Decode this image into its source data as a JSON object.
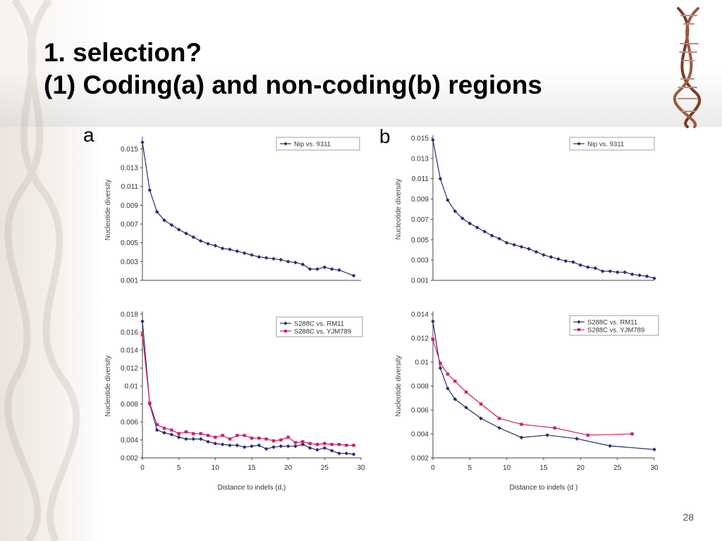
{
  "slide": {
    "title_line1": "1. selection?",
    "title_line2": "(1) Coding(a) and non-coding(b) regions",
    "panel_a": "a",
    "panel_b": "b",
    "page_number": "28"
  },
  "colors": {
    "navy": "#2b2a6e",
    "magenta": "#c8246e"
  },
  "chart_data": [
    {
      "id": "a-top",
      "type": "line",
      "ylabel": "Nucleotide diversity",
      "xlabel": "",
      "ylim": [
        0.001,
        0.016
      ],
      "xlim": [
        0,
        30
      ],
      "yticks": [
        0.001,
        0.003,
        0.005,
        0.007,
        0.009,
        0.011,
        0.013,
        0.015
      ],
      "ytick_labels": [
        "0.001",
        "0.003",
        "0.005",
        "0.007",
        "0.009",
        "0.011",
        "0.013",
        "0.015"
      ],
      "xticks": [],
      "xtick_labels": [],
      "grid": false,
      "legend": "top-right",
      "series": [
        {
          "name": "Nip vs. 9311",
          "color": "#2b2a6e",
          "marker": "diamond",
          "x": [
            0,
            1,
            2,
            3,
            4,
            5,
            6,
            7,
            8,
            9,
            10,
            11,
            12,
            13,
            14,
            15,
            16,
            17,
            18,
            19,
            20,
            21,
            22,
            23,
            24,
            25,
            26,
            27,
            29
          ],
          "y": [
            0.0157,
            0.0106,
            0.0083,
            0.0074,
            0.0069,
            0.0064,
            0.006,
            0.0056,
            0.0052,
            0.0049,
            0.0047,
            0.0044,
            0.0043,
            0.0041,
            0.0039,
            0.0037,
            0.0035,
            0.0034,
            0.0033,
            0.0032,
            0.003,
            0.0029,
            0.0027,
            0.0022,
            0.0022,
            0.0024,
            0.0022,
            0.0021,
            0.0015
          ]
        }
      ]
    },
    {
      "id": "a-bottom",
      "type": "line",
      "ylabel": "Nucleotide diversity",
      "xlabel": "Distance to indels (d,)",
      "ylim": [
        0.002,
        0.018
      ],
      "xlim": [
        0,
        30
      ],
      "yticks": [
        0.002,
        0.004,
        0.006,
        0.008,
        0.01,
        0.012,
        0.014,
        0.016,
        0.018
      ],
      "ytick_labels": [
        "0.002",
        "0.004",
        "0.006",
        "0.008",
        "0.01",
        "0.012",
        "0.014",
        "0.016",
        "0.018"
      ],
      "xticks": [
        0,
        5,
        10,
        15,
        20,
        25,
        30
      ],
      "xtick_labels": [
        "0",
        "5",
        "10",
        "15",
        "20",
        "25",
        "30"
      ],
      "grid": false,
      "legend": "top-right",
      "series": [
        {
          "name": "S288C vs. RM11",
          "color": "#2b2a6e",
          "marker": "diamond",
          "x": [
            0,
            1,
            2,
            3,
            4,
            5,
            6,
            7,
            8,
            9,
            10,
            11,
            12,
            13,
            14,
            15,
            16,
            17,
            18,
            19,
            20,
            21,
            22,
            23,
            24,
            25,
            26,
            27,
            28,
            29
          ],
          "y": [
            0.0172,
            0.008,
            0.0051,
            0.0048,
            0.0046,
            0.0043,
            0.0041,
            0.0041,
            0.0041,
            0.0038,
            0.0036,
            0.0035,
            0.0034,
            0.0034,
            0.0032,
            0.0033,
            0.0034,
            0.003,
            0.0032,
            0.0033,
            0.0033,
            0.0033,
            0.0035,
            0.0031,
            0.0029,
            0.0031,
            0.0028,
            0.0025,
            0.0025,
            0.0024
          ]
        },
        {
          "name": "S288C vs. YJM789",
          "color": "#c8246e",
          "marker": "square",
          "x": [
            0,
            1,
            2,
            3,
            4,
            5,
            6,
            7,
            8,
            9,
            10,
            11,
            12,
            13,
            14,
            15,
            16,
            17,
            18,
            19,
            20,
            21,
            22,
            23,
            24,
            25,
            26,
            27,
            28,
            29
          ],
          "y": [
            0.0157,
            0.0081,
            0.0057,
            0.0053,
            0.0051,
            0.0047,
            0.0049,
            0.0047,
            0.0047,
            0.0045,
            0.0043,
            0.0045,
            0.0041,
            0.0045,
            0.0045,
            0.0042,
            0.0042,
            0.0041,
            0.0039,
            0.004,
            0.0043,
            0.0037,
            0.0038,
            0.0036,
            0.0035,
            0.0036,
            0.0035,
            0.0035,
            0.0034,
            0.0034
          ]
        }
      ]
    },
    {
      "id": "b-top",
      "type": "line",
      "ylabel": "Nucleotide diversity",
      "xlabel": "",
      "ylim": [
        0.001,
        0.015
      ],
      "xlim": [
        0,
        30
      ],
      "yticks": [
        0.001,
        0.003,
        0.005,
        0.007,
        0.009,
        0.011,
        0.013,
        0.015
      ],
      "ytick_labels": [
        "0.001",
        "0.003",
        "0.005",
        "0.007",
        "0.009",
        "0.011",
        "0.013",
        "0.015"
      ],
      "xticks": [],
      "xtick_labels": [],
      "grid": false,
      "legend": "top-right",
      "series": [
        {
          "name": "Nip vs. 9311",
          "color": "#2b2a6e",
          "marker": "diamond",
          "x": [
            0,
            1,
            2,
            3,
            4,
            5,
            6,
            7,
            8,
            9,
            10,
            11,
            12,
            13,
            14,
            15,
            16,
            17,
            18,
            19,
            20,
            21,
            22,
            23,
            24,
            25,
            26,
            27,
            28,
            29,
            30
          ],
          "y": [
            0.0148,
            0.011,
            0.0089,
            0.0078,
            0.0071,
            0.0066,
            0.0062,
            0.0058,
            0.0054,
            0.0051,
            0.0047,
            0.0045,
            0.0043,
            0.0041,
            0.0038,
            0.0035,
            0.0033,
            0.0031,
            0.0029,
            0.0028,
            0.0025,
            0.0023,
            0.0022,
            0.0019,
            0.0019,
            0.0018,
            0.0018,
            0.0016,
            0.0015,
            0.0014,
            0.0012
          ]
        }
      ]
    },
    {
      "id": "b-bottom",
      "type": "line",
      "ylabel": "Nucleotide diversity",
      "xlabel": "Distance to indels (d )",
      "ylim": [
        0.002,
        0.014
      ],
      "xlim": [
        0,
        30
      ],
      "yticks": [
        0.002,
        0.004,
        0.006,
        0.008,
        0.01,
        0.012,
        0.014
      ],
      "ytick_labels": [
        "0.002",
        "0.004",
        "0.006",
        "0.008",
        "0.01",
        "0.012",
        "0.014"
      ],
      "xticks": [
        0,
        5,
        10,
        15,
        20,
        25,
        30
      ],
      "xtick_labels": [
        "0",
        "5",
        "10",
        "15",
        "20",
        "25",
        "30"
      ],
      "grid": false,
      "legend": "top-right",
      "series": [
        {
          "name": "S288C vs. RM11",
          "color": "#2b2a6e",
          "marker": "diamond",
          "x": [
            0,
            1,
            2,
            3,
            4.5,
            6.5,
            9,
            12,
            15.5,
            19.5,
            24,
            30
          ],
          "y": [
            0.0134,
            0.0095,
            0.0078,
            0.0069,
            0.0062,
            0.0053,
            0.0045,
            0.0037,
            0.0039,
            0.0036,
            0.003,
            0.0027
          ]
        },
        {
          "name": "S288C vs. YJM789",
          "color": "#c8246e",
          "marker": "square",
          "x": [
            0,
            1,
            2,
            3,
            4.5,
            6.5,
            9,
            12,
            16.5,
            21,
            27
          ],
          "y": [
            0.0119,
            0.0099,
            0.009,
            0.0084,
            0.0075,
            0.0065,
            0.0053,
            0.0048,
            0.0045,
            0.0039,
            0.004
          ]
        }
      ]
    }
  ]
}
